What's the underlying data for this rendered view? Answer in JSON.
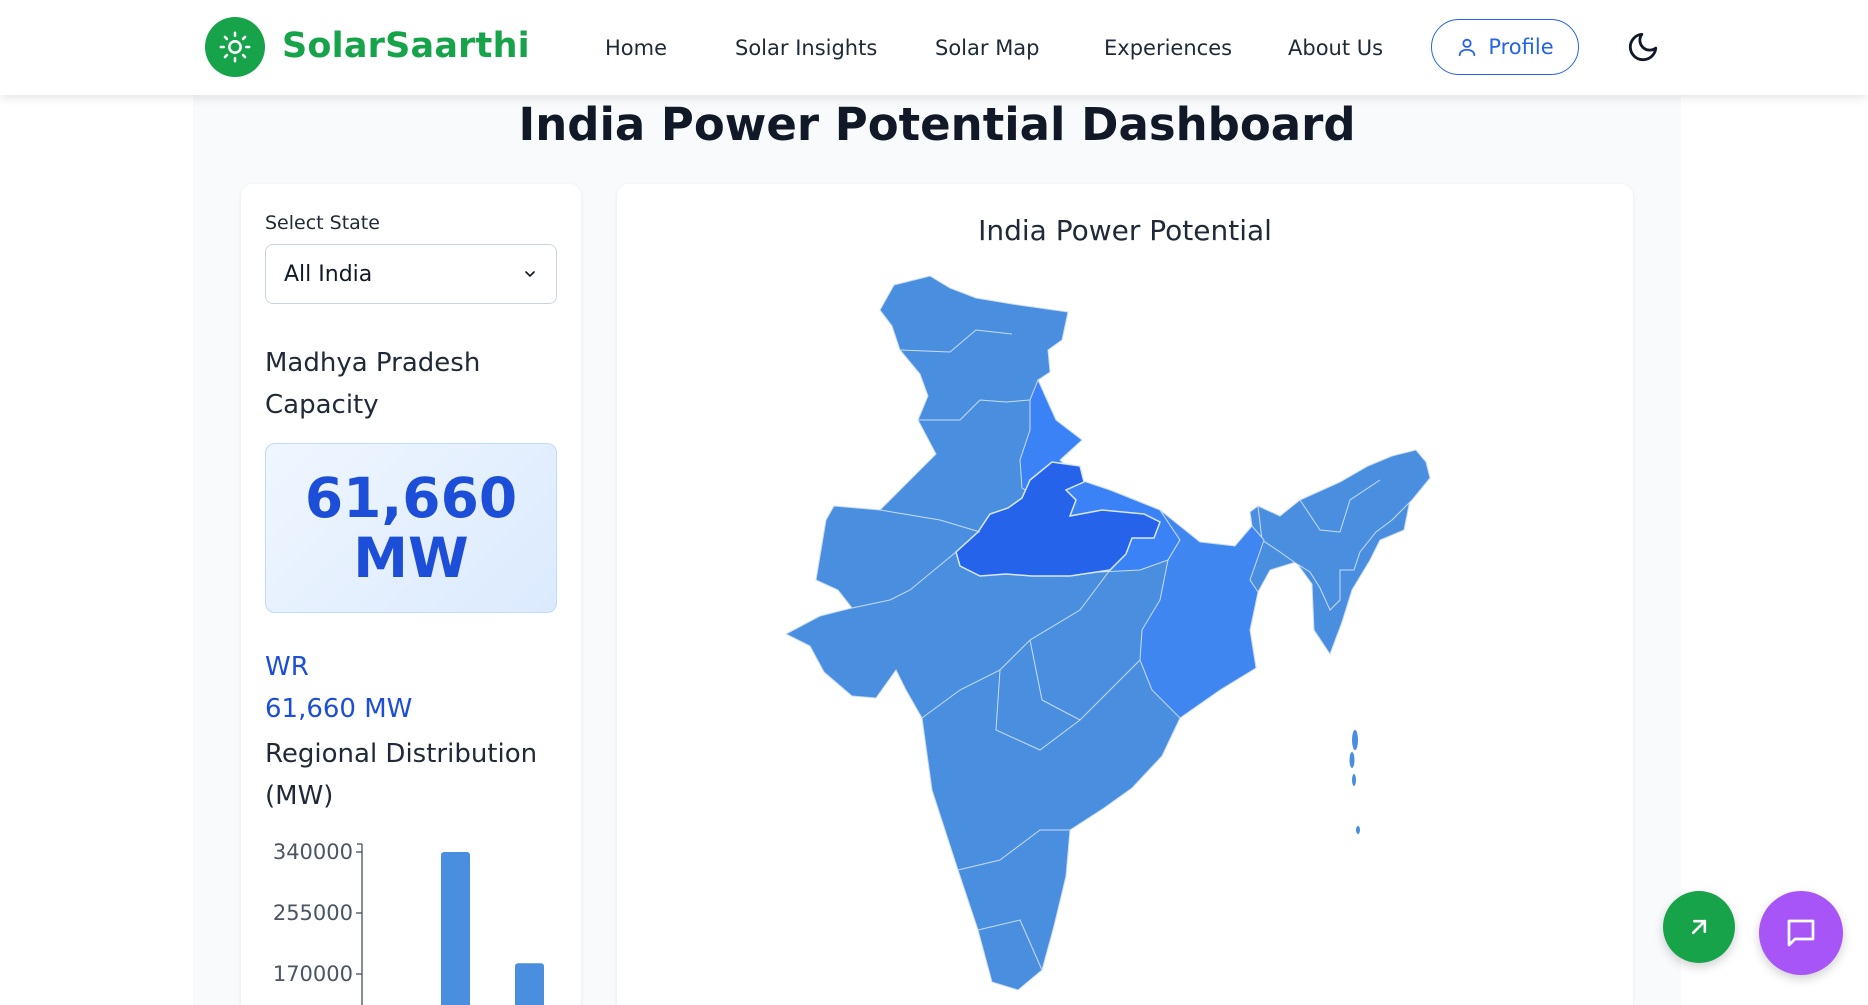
{
  "nav": {
    "brand": "SolarSaarthi",
    "links": [
      "Home",
      "Solar Insights",
      "Solar Map",
      "Experiences",
      "About Us"
    ],
    "profile_label": "Profile",
    "icons": {
      "logo": "sun-icon",
      "profile": "user-icon",
      "theme": "moon-icon"
    }
  },
  "page": {
    "title": "India Power Potential Dashboard"
  },
  "sidebar": {
    "select_label": "Select State",
    "selected_state": "All India",
    "capacity_title": "Madhya Pradesh Capacity",
    "capacity_value": "61,660 MW",
    "region_code": "WR",
    "region_value": "61,660 MW",
    "distribution_title": "Regional Distribution (MW)"
  },
  "map": {
    "title": "India Power Potential",
    "highlighted_state": "Madhya Pradesh",
    "colors": {
      "base": "#4a8ee0",
      "north": "#3b82f6",
      "highlight": "#2563eb"
    }
  },
  "chart_data": {
    "type": "bar",
    "title": "Regional Distribution (MW)",
    "yticks": [
      340000,
      255000,
      170000
    ],
    "ylim": [
      0,
      340000
    ],
    "values": [
      340000,
      185000
    ],
    "bar_color": "#4a8ee0"
  },
  "fabs": {
    "left_icon": "arrow-up-right-icon",
    "right_icon": "chat-icon",
    "left_color": "#16a34a",
    "right_color": "#a855f7"
  }
}
